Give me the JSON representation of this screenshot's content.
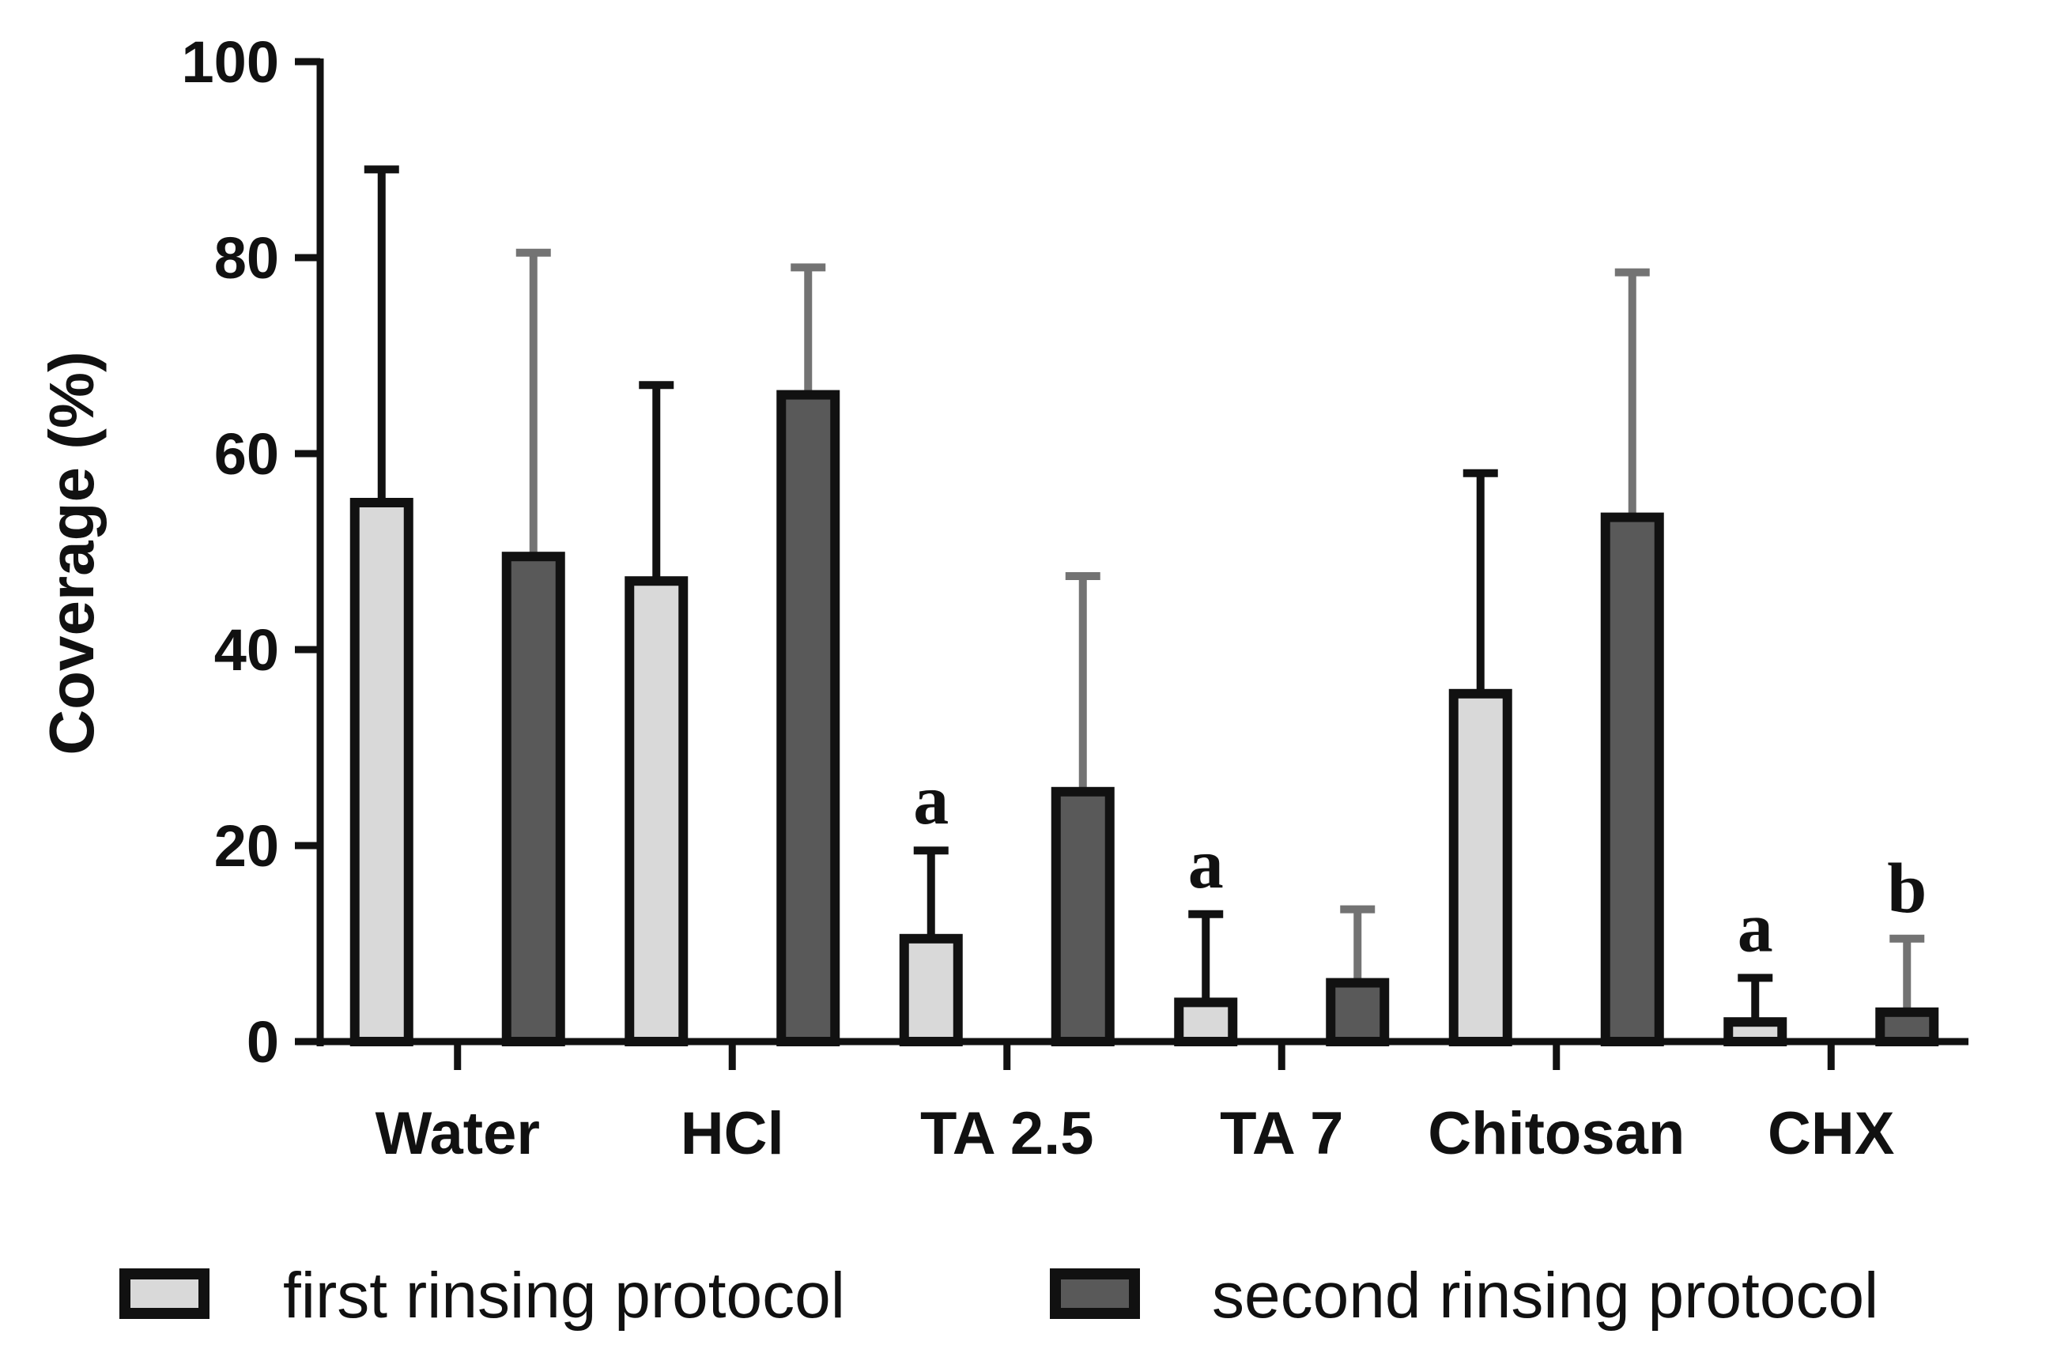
{
  "chart_data": {
    "type": "bar",
    "title": "",
    "xlabel": "",
    "ylabel": "Coverage (%)",
    "ylim": [
      0,
      100
    ],
    "yticks": [
      0,
      20,
      40,
      60,
      80,
      100
    ],
    "grid": false,
    "categories": [
      "Water",
      "HCl",
      "TA 2.5",
      "TA 7",
      "Chitosan",
      "CHX"
    ],
    "series": [
      {
        "name": "first rinsing protocol",
        "color": "#d9d9d9",
        "values": [
          55,
          47,
          10.5,
          4,
          35.5,
          2
        ],
        "errors": [
          34,
          20,
          9,
          9,
          22.5,
          4.5
        ],
        "annotations": [
          "",
          "",
          "a",
          "a",
          "",
          "a"
        ]
      },
      {
        "name": "second rinsing protocol",
        "color": "#595959",
        "values": [
          49.5,
          66,
          25.5,
          6,
          53.5,
          3
        ],
        "errors": [
          31,
          13,
          22,
          7.5,
          25,
          7.5
        ],
        "annotations": [
          "",
          "",
          "",
          "",
          "",
          "b"
        ]
      }
    ],
    "legend_position": "bottom"
  }
}
